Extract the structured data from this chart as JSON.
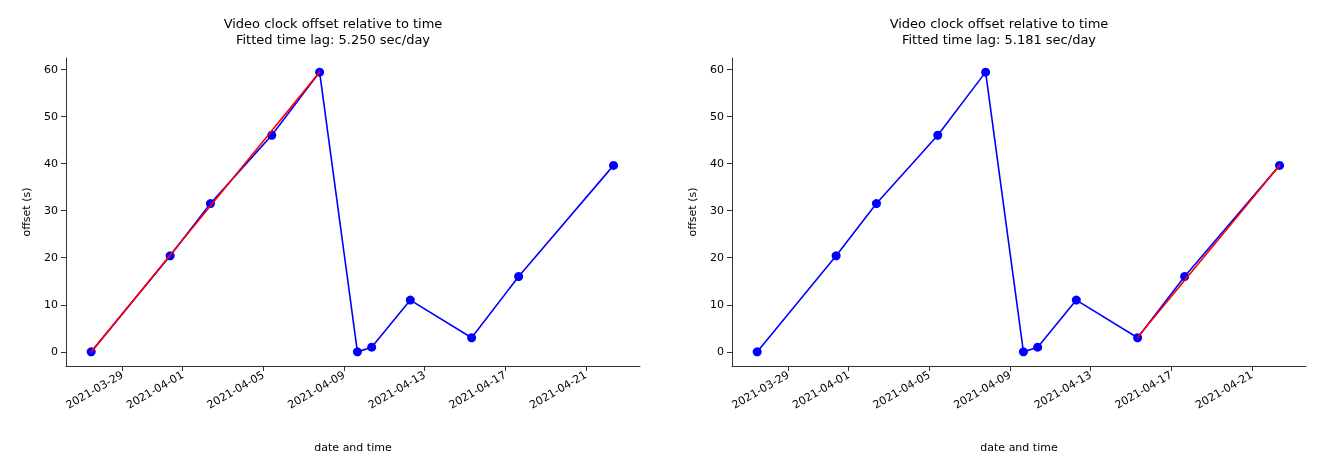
{
  "chart_data": [
    {
      "type": "line",
      "title": "Video clock offset relative to time",
      "subtitle": "Fitted time lag: 5.250 sec/day",
      "xlabel": "date and time",
      "ylabel": "offset (s)",
      "marker": "circle",
      "line_style": "solid",
      "xlim": [
        "2021-03-26T05:00",
        "2021-04-23T16:30"
      ],
      "xticks": [
        "2021-03-29",
        "2021-04-01",
        "2021-04-05",
        "2021-04-09",
        "2021-04-13",
        "2021-04-17",
        "2021-04-21"
      ],
      "ylim": [
        -3,
        62.4
      ],
      "yticks": [
        0,
        10,
        20,
        30,
        40,
        50,
        60
      ],
      "series": [
        {
          "color": "#0000ff",
          "x": [
            "2021-03-27T11:00",
            "2021-03-31T09:00",
            "2021-04-02T09:00",
            "2021-04-05T10:00",
            "2021-04-07T19:00",
            "2021-04-09T16:00",
            "2021-04-10T09:00",
            "2021-04-12T07:00",
            "2021-04-15T08:00",
            "2021-04-17T16:00",
            "2021-04-22T09:00"
          ],
          "values": [
            0,
            20.4,
            31.5,
            46,
            59.4,
            0,
            1,
            11,
            3,
            16,
            39.6
          ]
        },
        {
          "type": "line",
          "color": "#ff0000",
          "marker": "none",
          "x": [
            "2021-03-27T11:00",
            "2021-04-07T19:00"
          ],
          "values": [
            0,
            59.4
          ]
        }
      ]
    },
    {
      "type": "line",
      "title": "Video clock offset relative to time",
      "subtitle": "Fitted time lag: 5.181 sec/day",
      "xlabel": "date and time",
      "ylabel": "offset (s)",
      "marker": "circle",
      "line_style": "solid",
      "xlim": [
        "2021-03-26T05:00",
        "2021-04-23T16:30"
      ],
      "xticks": [
        "2021-03-29",
        "2021-04-01",
        "2021-04-05",
        "2021-04-09",
        "2021-04-13",
        "2021-04-17",
        "2021-04-21"
      ],
      "ylim": [
        -3,
        62.4
      ],
      "yticks": [
        0,
        10,
        20,
        30,
        40,
        50,
        60
      ],
      "series": [
        {
          "color": "#0000ff",
          "x": [
            "2021-03-27T11:00",
            "2021-03-31T09:00",
            "2021-04-02T09:00",
            "2021-04-05T10:00",
            "2021-04-07T19:00",
            "2021-04-09T16:00",
            "2021-04-10T09:00",
            "2021-04-12T07:00",
            "2021-04-15T08:00",
            "2021-04-17T16:00",
            "2021-04-22T09:00"
          ],
          "values": [
            0,
            20.4,
            31.5,
            46,
            59.4,
            0,
            1,
            11,
            3,
            16,
            39.6
          ]
        },
        {
          "type": "line",
          "color": "#ff0000",
          "marker": "none",
          "x": [
            "2021-04-15T08:00",
            "2021-04-22T09:00"
          ],
          "values": [
            3.1,
            39.6
          ]
        }
      ]
    }
  ]
}
